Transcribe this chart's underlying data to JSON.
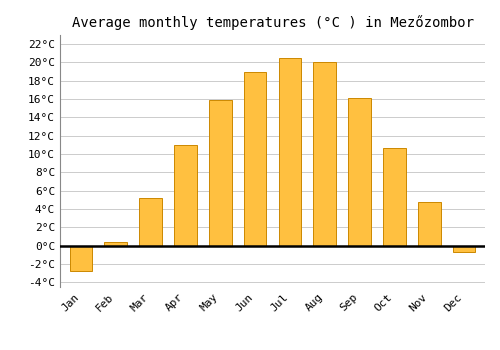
{
  "title": "Average monthly temperatures (°C ) in Mezőzombor",
  "months": [
    "Jan",
    "Feb",
    "Mar",
    "Apr",
    "May",
    "Jun",
    "Jul",
    "Aug",
    "Sep",
    "Oct",
    "Nov",
    "Dec"
  ],
  "values": [
    -2.7,
    0.4,
    5.2,
    11.0,
    15.9,
    19.0,
    20.5,
    20.0,
    16.1,
    10.7,
    4.8,
    -0.7
  ],
  "bar_color": "#FFC040",
  "bar_edge_color": "#CC8800",
  "ylim": [
    -4.5,
    23.0
  ],
  "yticks": [
    -4,
    -2,
    0,
    2,
    4,
    6,
    8,
    10,
    12,
    14,
    16,
    18,
    20,
    22
  ],
  "background_color": "#ffffff",
  "grid_color": "#cccccc",
  "title_fontsize": 10,
  "tick_fontsize": 8,
  "font_family": "monospace"
}
